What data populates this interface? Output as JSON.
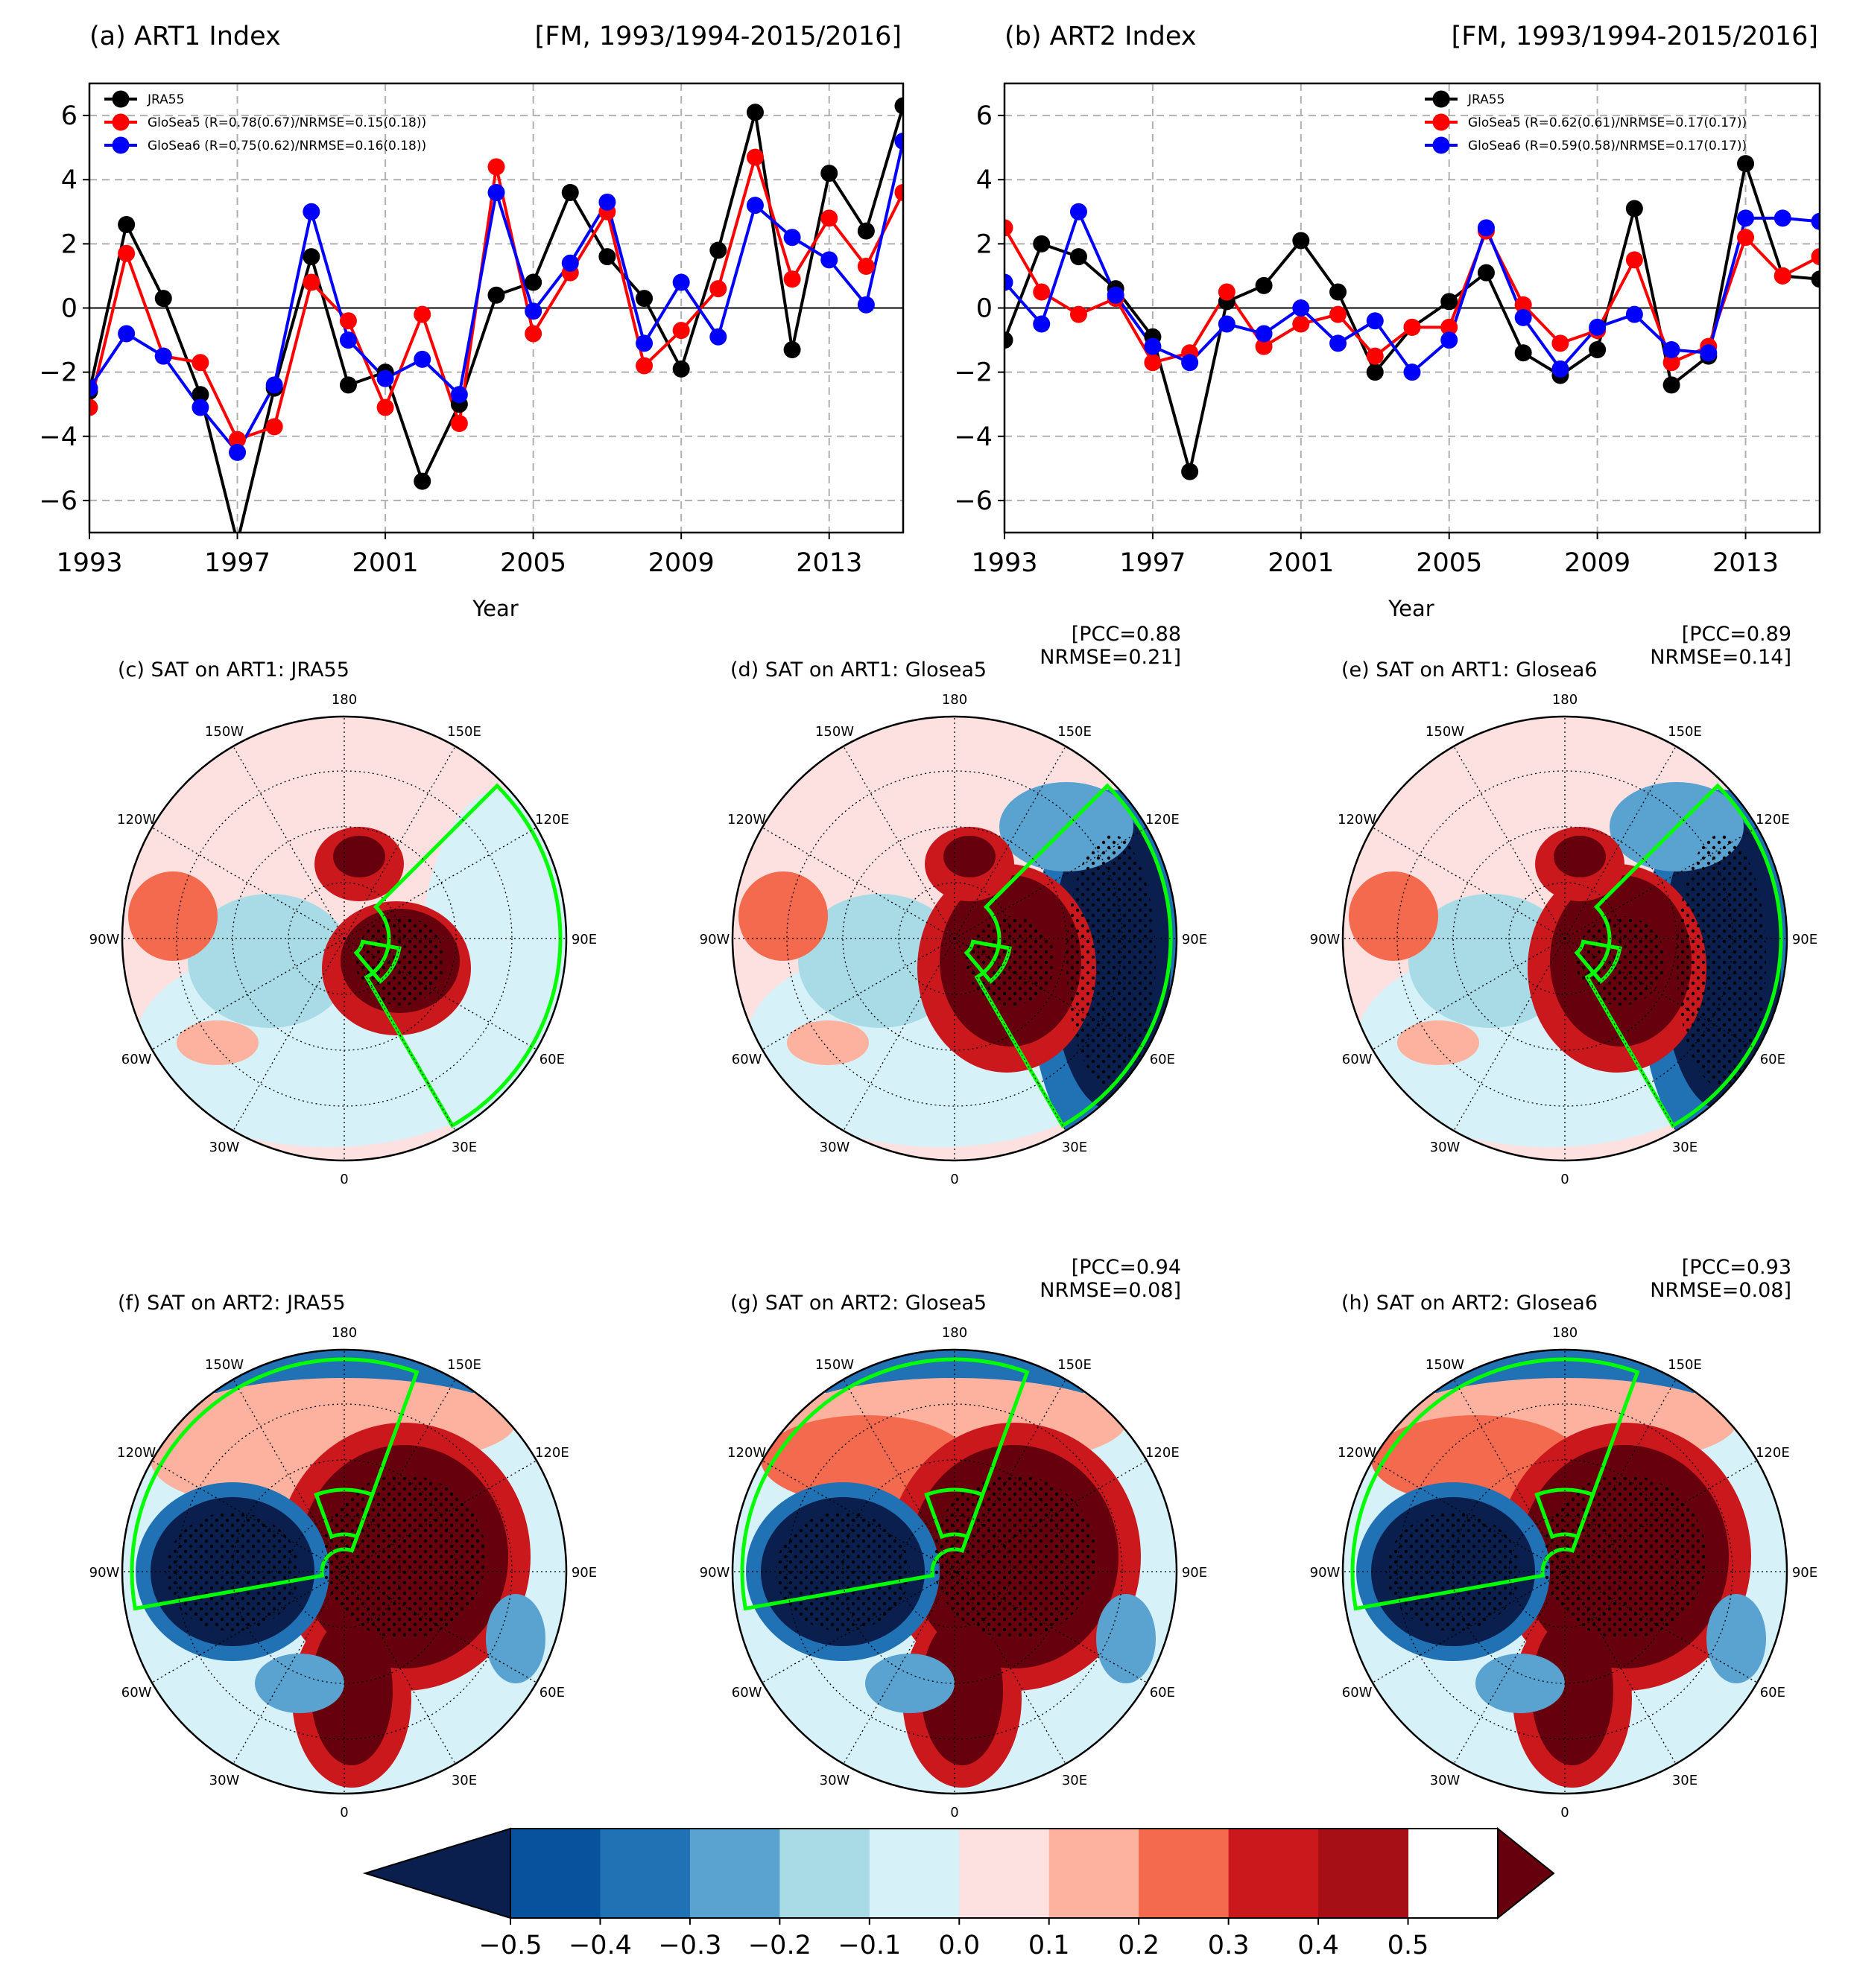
{
  "colors": {
    "jra55": "#000000",
    "glosea5": "#ff0000",
    "glosea6": "#0000ff",
    "box": "#00ff00",
    "zero_line": "#000000",
    "grid": "#b0b0b0"
  },
  "chart_data": [
    {
      "type": "line",
      "panel": "(a)",
      "title": "(a) ART1 Index",
      "title_right": "[FM, 1993/1994-2015/2016]",
      "xlabel": "Year",
      "ylabel": "",
      "xlim": [
        1993,
        2015
      ],
      "ylim": [
        -7,
        7
      ],
      "xticks": [
        1993,
        1997,
        2001,
        2005,
        2009,
        2013
      ],
      "yticks": [
        6,
        4,
        2,
        0,
        -2,
        -4,
        -6
      ],
      "grid": true,
      "legend_position": "upper-left",
      "x": [
        1993,
        1994,
        1995,
        1996,
        1997,
        1998,
        1999,
        2000,
        2001,
        2002,
        2003,
        2004,
        2005,
        2006,
        2007,
        2008,
        2009,
        2010,
        2011,
        2012,
        2013,
        2014,
        2015
      ],
      "series": [
        {
          "name": "JRA55",
          "legend": "JRA55",
          "color": "#000000",
          "values": [
            -2.6,
            2.6,
            0.3,
            -2.7,
            -7.3,
            -2.5,
            1.6,
            -2.4,
            -2.0,
            -5.4,
            -3.0,
            0.4,
            0.8,
            3.6,
            1.6,
            0.3,
            -1.9,
            1.8,
            6.1,
            -1.3,
            4.2,
            2.4,
            6.3
          ]
        },
        {
          "name": "GloSea5",
          "legend": "GloSea5 (R=0.78(0.67)/NRMSE=0.15(0.18))",
          "color": "#ff0000",
          "values": [
            -3.1,
            1.7,
            -1.5,
            -1.7,
            -4.1,
            -3.7,
            0.8,
            -0.4,
            -3.1,
            -0.2,
            -3.6,
            4.4,
            -0.8,
            1.1,
            3.0,
            -1.8,
            -0.7,
            0.6,
            4.7,
            0.9,
            2.8,
            1.3,
            3.6
          ]
        },
        {
          "name": "GloSea6",
          "legend": "GloSea6 (R=0.75(0.62)/NRMSE=0.16(0.18))",
          "color": "#0000ff",
          "values": [
            -2.5,
            -0.8,
            -1.5,
            -3.1,
            -4.5,
            -2.4,
            3.0,
            -1.0,
            -2.2,
            -1.6,
            -2.7,
            3.6,
            -0.1,
            1.4,
            3.3,
            -1.1,
            0.8,
            -0.9,
            3.2,
            2.2,
            1.5,
            0.1,
            5.2
          ]
        }
      ]
    },
    {
      "type": "line",
      "panel": "(b)",
      "title": "(b) ART2 Index",
      "title_right": "[FM, 1993/1994-2015/2016]",
      "xlabel": "Year",
      "ylabel": "",
      "xlim": [
        1993,
        2015
      ],
      "ylim": [
        -7,
        7
      ],
      "xticks": [
        1993,
        1997,
        2001,
        2005,
        2009,
        2013
      ],
      "yticks": [
        6,
        4,
        2,
        0,
        -2,
        -4,
        -6
      ],
      "grid": true,
      "legend_position": "upper-right",
      "x": [
        1993,
        1994,
        1995,
        1996,
        1997,
        1998,
        1999,
        2000,
        2001,
        2002,
        2003,
        2004,
        2005,
        2006,
        2007,
        2008,
        2009,
        2010,
        2011,
        2012,
        2013,
        2014,
        2015
      ],
      "series": [
        {
          "name": "JRA55",
          "legend": "JRA55",
          "color": "#000000",
          "values": [
            -1.0,
            2.0,
            1.6,
            0.6,
            -0.9,
            -5.1,
            0.2,
            0.7,
            2.1,
            0.5,
            -2.0,
            -0.6,
            0.2,
            1.1,
            -1.4,
            -2.1,
            -1.3,
            3.1,
            -2.4,
            -1.5,
            4.5,
            1.0,
            0.9
          ]
        },
        {
          "name": "GloSea5",
          "legend": "GloSea5 (R=0.62(0.61)/NRMSE=0.17(0.17))",
          "color": "#ff0000",
          "values": [
            2.5,
            0.5,
            -0.2,
            0.3,
            -1.7,
            -1.4,
            0.5,
            -1.2,
            -0.5,
            -0.2,
            -1.5,
            -0.6,
            -0.6,
            2.4,
            0.1,
            -1.1,
            -0.7,
            1.5,
            -1.7,
            -1.2,
            2.2,
            1.0,
            1.6
          ]
        },
        {
          "name": "GloSea6",
          "legend": "GloSea6 (R=0.59(0.58)/NRMSE=0.17(0.17))",
          "color": "#0000ff",
          "values": [
            0.8,
            -0.5,
            3.0,
            0.4,
            -1.2,
            -1.7,
            -0.5,
            -0.8,
            0.0,
            -1.1,
            -0.4,
            -2.0,
            -1.0,
            2.5,
            -0.3,
            -1.9,
            -0.6,
            -0.2,
            -1.3,
            -1.4,
            2.8,
            2.8,
            2.7
          ]
        }
      ]
    },
    {
      "type": "heatmap",
      "maps": [
        {
          "panel": "c",
          "title": "(c) SAT on ART1: JRA55",
          "stats": "",
          "pattern": 1,
          "source": "JRA55"
        },
        {
          "panel": "d",
          "title": "(d) SAT on ART1: Glosea5",
          "stats": "[PCC=0.88\nNRMSE=0.21]",
          "pattern": 1,
          "source": "GloSea5"
        },
        {
          "panel": "e",
          "title": "(e) SAT on ART1: Glosea6",
          "stats": "[PCC=0.89\nNRMSE=0.14]",
          "pattern": 1,
          "source": "GloSea6"
        },
        {
          "panel": "f",
          "title": "(f) SAT on ART2: JRA55",
          "stats": "",
          "pattern": 2,
          "source": "JRA55"
        },
        {
          "panel": "g",
          "title": "(g) SAT on ART2: Glosea5",
          "stats": "[PCC=0.94\nNRMSE=0.08]",
          "pattern": 2,
          "source": "GloSea5"
        },
        {
          "panel": "h",
          "title": "(h) SAT on ART2: Glosea6",
          "stats": "[PCC=0.93\nNRMSE=0.08]",
          "pattern": 2,
          "source": "GloSea6"
        }
      ],
      "lon_labels": [
        "180",
        "150E",
        "120E",
        "90E",
        "60E",
        "30E",
        "0",
        "30W",
        "60W",
        "90W",
        "120W",
        "150W"
      ],
      "projection": "north-polar-stereographic",
      "colorbar": {
        "ticks": [
          "−0.5",
          "−0.4",
          "−0.3",
          "−0.2",
          "−0.1",
          "0.0",
          "0.1",
          "0.2",
          "0.3",
          "0.4",
          "0.5"
        ],
        "levels": [
          -0.5,
          -0.4,
          -0.3,
          -0.2,
          -0.1,
          0.0,
          0.1,
          0.2,
          0.3,
          0.4,
          0.5
        ],
        "colors": [
          "#0a1f4e",
          "#08519c",
          "#2171b5",
          "#5aa2cf",
          "#a8dbe6",
          "#d6f1f8",
          "#fde0e0",
          "#fcb29e",
          "#f46a4e",
          "#cb181d",
          "#a50f15",
          "#67000d"
        ],
        "extend": "both"
      }
    }
  ]
}
